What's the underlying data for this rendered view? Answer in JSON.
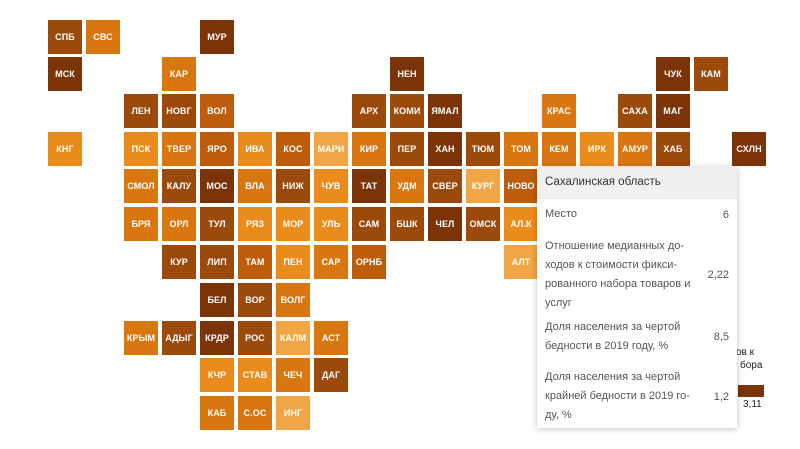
{
  "colors": {
    "c1": "#f0a645",
    "c2": "#ea8c1c",
    "c3": "#d87610",
    "c4": "#bd5d0c",
    "c5": "#9c4a0c",
    "c6": "#7a3407"
  },
  "regions": [
    {
      "code": "СПБ",
      "level": 5
    },
    {
      "code": "СВС",
      "level": 3
    },
    {
      "code": "МУР",
      "level": 6
    },
    {
      "code": "МСК",
      "level": 6
    },
    {
      "code": "КАР",
      "level": 3
    },
    {
      "code": "НЕН",
      "level": 6
    },
    {
      "code": "ЧУК",
      "level": 6
    },
    {
      "code": "КАМ",
      "level": 5
    },
    {
      "code": "ЛЕН",
      "level": 5
    },
    {
      "code": "НОВГ",
      "level": 5
    },
    {
      "code": "ВОЛ",
      "level": 4
    },
    {
      "code": "АРХ",
      "level": 5
    },
    {
      "code": "КОМИ",
      "level": 5
    },
    {
      "code": "ЯМАЛ",
      "level": 6
    },
    {
      "code": "КРАС",
      "level": 3
    },
    {
      "code": "САХА",
      "level": 5
    },
    {
      "code": "МАГ",
      "level": 6
    },
    {
      "code": "КНГ",
      "level": 2
    },
    {
      "code": "ПСК",
      "level": 2
    },
    {
      "code": "ТВЕР",
      "level": 3
    },
    {
      "code": "ЯРО",
      "level": 4
    },
    {
      "code": "ИВА",
      "level": 2
    },
    {
      "code": "КОС",
      "level": 4
    },
    {
      "code": "МАРИ",
      "level": 1
    },
    {
      "code": "КИР",
      "level": 3
    },
    {
      "code": "ПЕР",
      "level": 5
    },
    {
      "code": "ХАН",
      "level": 6
    },
    {
      "code": "ТЮМ",
      "level": 5
    },
    {
      "code": "ТОМ",
      "level": 3
    },
    {
      "code": "КЕМ",
      "level": 3
    },
    {
      "code": "ИРК",
      "level": 2
    },
    {
      "code": "АМУР",
      "level": 3
    },
    {
      "code": "ХАБ",
      "level": 5
    },
    {
      "code": "СХЛН",
      "level": 6
    },
    {
      "code": "СМОЛ",
      "level": 3
    },
    {
      "code": "КАЛУ",
      "level": 5
    },
    {
      "code": "МОС",
      "level": 6
    },
    {
      "code": "ВЛА",
      "level": 3
    },
    {
      "code": "НИЖ",
      "level": 5
    },
    {
      "code": "ЧУВ",
      "level": 2
    },
    {
      "code": "ТАТ",
      "level": 6
    },
    {
      "code": "УДМ",
      "level": 3
    },
    {
      "code": "СВЕР",
      "level": 5
    },
    {
      "code": "КУРГ",
      "level": 1
    },
    {
      "code": "НОВО",
      "level": 4
    },
    {
      "code": "БРЯ",
      "level": 3
    },
    {
      "code": "ОРЛ",
      "level": 3
    },
    {
      "code": "ТУЛ",
      "level": 5
    },
    {
      "code": "РЯЗ",
      "level": 2
    },
    {
      "code": "МОР",
      "level": 2
    },
    {
      "code": "УЛЬ",
      "level": 2
    },
    {
      "code": "САМ",
      "level": 5
    },
    {
      "code": "БШК",
      "level": 5
    },
    {
      "code": "ЧЕЛ",
      "level": 6
    },
    {
      "code": "ОМСК",
      "level": 5
    },
    {
      "code": "АЛ.К",
      "level": 2
    },
    {
      "code": "КУР",
      "level": 5
    },
    {
      "code": "ЛИП",
      "level": 5
    },
    {
      "code": "ТАМ",
      "level": 4
    },
    {
      "code": "ПЕН",
      "level": 2
    },
    {
      "code": "САР",
      "level": 3
    },
    {
      "code": "ОРНБ",
      "level": 4
    },
    {
      "code": "АЛТ",
      "level": 1
    },
    {
      "code": "БЕЛ",
      "level": 6
    },
    {
      "code": "ВОР",
      "level": 5
    },
    {
      "code": "ВОЛГ",
      "level": 3
    },
    {
      "code": "КРЫМ",
      "level": 3
    },
    {
      "code": "АДЫГ",
      "level": 5
    },
    {
      "code": "КРДР",
      "level": 6
    },
    {
      "code": "РОС",
      "level": 5
    },
    {
      "code": "КАЛМ",
      "level": 1
    },
    {
      "code": "АСТ",
      "level": 3
    },
    {
      "code": "КЧР",
      "level": 2
    },
    {
      "code": "СТАВ",
      "level": 2
    },
    {
      "code": "ЧЕЧ",
      "level": 3
    },
    {
      "code": "ДАГ",
      "level": 5
    },
    {
      "code": "КАБ",
      "level": 3
    },
    {
      "code": "С.ОС",
      "level": 3
    },
    {
      "code": "ИНГ",
      "level": 1
    }
  ],
  "legend": {
    "title_line1": "ов к",
    "title_line2": "бора",
    "max_value": "3,11"
  },
  "tooltip": {
    "title": "Сахалинская область",
    "rows": [
      {
        "label": "Место",
        "value": "6"
      },
      {
        "label": "Отношение медианных до-ходов к стоимости фикси-рованного набора товаров и услуг",
        "value": "2,22"
      },
      {
        "label": "Доля населения за чертой бедности в 2019 году, %",
        "value": "8,5"
      },
      {
        "label": "Доля населения за чертой крайней бедности в 2019 го-ду, %",
        "value": "1,2"
      }
    ]
  }
}
